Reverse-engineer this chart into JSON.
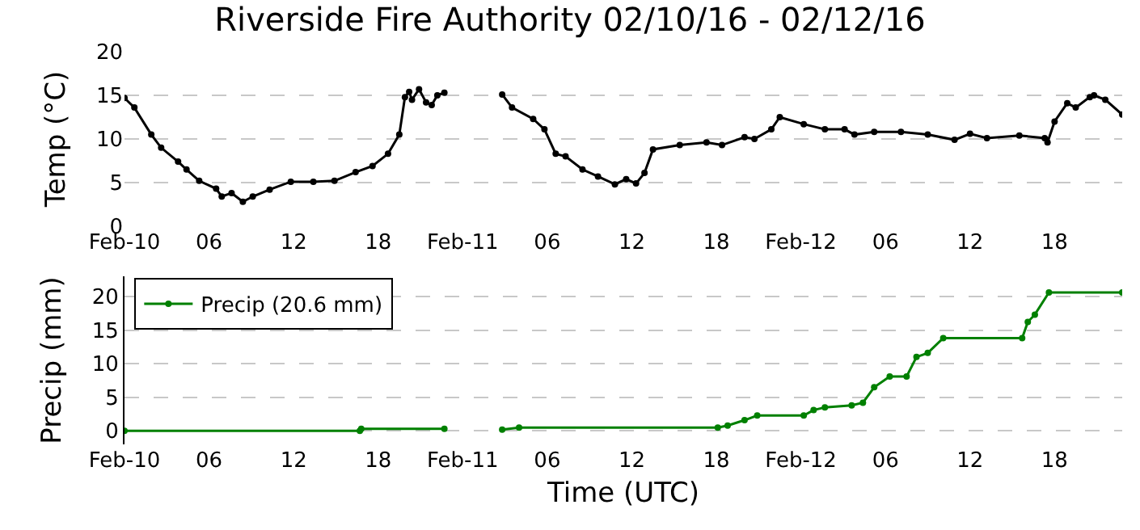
{
  "chart_data": [
    {
      "type": "line",
      "title": "Riverside Fire Authority 02/10/16 - 02/12/16",
      "ylabel": "Temp (°C)",
      "x": [
        "--02-10T00:00",
        "--02-10T00:42",
        "--02-10T01:54",
        "--02-10T02:36",
        "--02-10T03:48",
        "--02-10T04:24",
        "--02-10T05:18",
        "--02-10T06:30",
        "--02-10T06:54",
        "--02-10T07:36",
        "--02-10T08:24",
        "--02-10T09:06",
        "--02-10T10:18",
        "--02-10T11:48",
        "--02-10T13:24",
        "--02-10T14:54",
        "--02-10T16:24",
        "--02-10T17:36",
        "--02-10T18:42",
        "--02-10T19:30",
        "--02-10T19:54",
        "--02-10T20:12",
        "--02-10T20:24",
        "--02-10T20:54",
        "--02-10T21:24",
        "--02-10T21:48",
        "--02-10T22:12",
        "--02-10T22:42",
        "--02-11T00:00",
        "--02-11T02:48",
        "--02-11T03:30",
        "--02-11T05:00",
        "--02-11T05:48",
        "--02-11T06:36",
        "--02-11T07:18",
        "--02-11T08:30",
        "--02-11T09:36",
        "--02-11T10:48",
        "--02-11T11:36",
        "--02-11T12:18",
        "--02-11T12:54",
        "--02-11T13:30",
        "--02-11T15:24",
        "--02-11T17:18",
        "--02-11T18:24",
        "--02-11T20:00",
        "--02-11T20:42",
        "--02-11T21:54",
        "--02-11T22:30",
        "--02-12T00:12",
        "--02-12T01:42",
        "--02-12T03:06",
        "--02-12T03:48",
        "--02-12T05:12",
        "--02-12T07:06",
        "--02-12T09:00",
        "--02-12T10:54",
        "--02-12T12:00",
        "--02-12T13:12",
        "--02-12T15:30",
        "--02-12T17:18",
        "--02-12T17:30",
        "--02-12T18:00",
        "--02-12T18:54",
        "--02-12T19:30",
        "--02-12T20:30",
        "--02-12T20:48",
        "--02-12T21:36",
        "--02-12T22:48"
      ],
      "series": [
        {
          "color": "#000000",
          "values": [
            14.7,
            13.6,
            10.5,
            9.0,
            7.4,
            6.5,
            5.2,
            4.3,
            3.4,
            3.8,
            2.8,
            3.4,
            4.2,
            5.1,
            5.1,
            5.2,
            6.2,
            6.9,
            8.3,
            10.5,
            14.8,
            15.4,
            14.5,
            15.7,
            14.2,
            13.9,
            15.0,
            15.3,
            null,
            15.1,
            13.6,
            12.3,
            11.1,
            8.3,
            8.0,
            6.5,
            5.7,
            4.8,
            5.4,
            4.9,
            6.1,
            8.8,
            9.3,
            9.6,
            9.3,
            10.2,
            10.0,
            11.1,
            12.5,
            11.7,
            11.1,
            11.1,
            10.5,
            10.8,
            10.8,
            10.5,
            9.9,
            10.6,
            10.1,
            10.4,
            10.1,
            9.6,
            12.0,
            14.1,
            13.6,
            14.8,
            15.0,
            14.5,
            12.8
          ]
        }
      ],
      "xlim": [
        "--02-10T00:00",
        "--02-12T22:48"
      ],
      "xticks": [
        {
          "value": "--02-10T00:00",
          "label": "Feb-10"
        },
        {
          "value": "--02-10T06:00",
          "label": "06"
        },
        {
          "value": "--02-10T12:00",
          "label": "12"
        },
        {
          "value": "--02-10T18:00",
          "label": "18"
        },
        {
          "value": "--02-11T00:00",
          "label": "Feb-11"
        },
        {
          "value": "--02-11T06:00",
          "label": "06"
        },
        {
          "value": "--02-11T12:00",
          "label": "12"
        },
        {
          "value": "--02-11T18:00",
          "label": "18"
        },
        {
          "value": "--02-12T00:00",
          "label": "Feb-12"
        },
        {
          "value": "--02-12T06:00",
          "label": "06"
        },
        {
          "value": "--02-12T12:00",
          "label": "12"
        },
        {
          "value": "--02-12T18:00",
          "label": "18"
        }
      ],
      "ylim": [
        0,
        20
      ],
      "yticks": [
        0,
        5,
        10,
        15,
        20
      ],
      "grid": "y",
      "marker": "circle",
      "line_style": "solid",
      "legend": false
    },
    {
      "type": "line",
      "xlabel": "Time (UTC)",
      "ylabel": "Precip (mm)",
      "x": [
        "--02-10T00:00",
        "--02-10T16:42",
        "--02-10T16:48",
        "--02-10T22:42",
        "--02-11T00:00",
        "--02-11T02:48",
        "--02-11T04:00",
        "--02-11T18:06",
        "--02-11T18:48",
        "--02-11T20:00",
        "--02-11T20:54",
        "--02-12T00:12",
        "--02-12T00:54",
        "--02-12T01:42",
        "--02-12T03:36",
        "--02-12T04:24",
        "--02-12T05:12",
        "--02-12T06:18",
        "--02-12T07:30",
        "--02-12T08:12",
        "--02-12T09:00",
        "--02-12T10:06",
        "--02-12T15:42",
        "--02-12T16:06",
        "--02-12T16:36",
        "--02-12T17:36",
        "--02-12T22:48"
      ],
      "series": [
        {
          "name": "Precip (20.6 mm)",
          "color": "#008000",
          "values": [
            0,
            0,
            0.3,
            0.3,
            null,
            0.2,
            0.5,
            0.5,
            0.8,
            1.6,
            2.3,
            2.3,
            3.1,
            3.5,
            3.8,
            4.2,
            6.5,
            8.1,
            8.1,
            11.0,
            11.6,
            13.8,
            13.8,
            16.2,
            17.3,
            20.6,
            20.6
          ]
        }
      ],
      "xlim": [
        "--02-10T00:00",
        "--02-12T22:48"
      ],
      "xticks": [
        {
          "value": "--02-10T00:00",
          "label": "Feb-10"
        },
        {
          "value": "--02-10T06:00",
          "label": "06"
        },
        {
          "value": "--02-10T12:00",
          "label": "12"
        },
        {
          "value": "--02-10T18:00",
          "label": "18"
        },
        {
          "value": "--02-11T00:00",
          "label": "Feb-11"
        },
        {
          "value": "--02-11T06:00",
          "label": "06"
        },
        {
          "value": "--02-11T12:00",
          "label": "12"
        },
        {
          "value": "--02-11T18:00",
          "label": "18"
        },
        {
          "value": "--02-12T00:00",
          "label": "Feb-12"
        },
        {
          "value": "--02-12T06:00",
          "label": "06"
        },
        {
          "value": "--02-12T12:00",
          "label": "12"
        },
        {
          "value": "--02-12T18:00",
          "label": "18"
        }
      ],
      "ylim": [
        -2,
        23
      ],
      "yticks": [
        0,
        5,
        10,
        15,
        20
      ],
      "grid": "y",
      "marker": "circle",
      "line_style": "solid",
      "legend": "top left"
    }
  ]
}
